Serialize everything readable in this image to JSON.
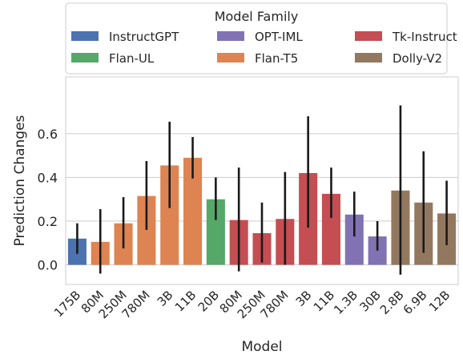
{
  "chart_data": {
    "type": "bar",
    "xlabel": "Model",
    "ylabel": "Prediction Changes",
    "ylim": [
      -0.09,
      0.86
    ],
    "yticks": [
      0.0,
      0.2,
      0.4,
      0.6
    ],
    "ytick_labels": [
      "0.0",
      "0.2",
      "0.4",
      "0.6"
    ],
    "grid": true,
    "legend": {
      "title": "Model Family",
      "placement": "top",
      "columns": 3,
      "entries": [
        {
          "name": "InstructGPT",
          "color": "#4c72b0"
        },
        {
          "name": "Flan-UL",
          "color": "#55a868"
        },
        {
          "name": "OPT-IML",
          "color": "#8172b3"
        },
        {
          "name": "Flan-T5",
          "color": "#dd8452"
        },
        {
          "name": "Tk-Instruct",
          "color": "#c44e52"
        },
        {
          "name": "Dolly-V2",
          "color": "#937860"
        }
      ]
    },
    "categories": [
      "175B",
      "80M",
      "250M",
      "780M",
      "3B",
      "11B",
      "20B",
      "80M",
      "250M",
      "780M",
      "3B",
      "11B",
      "1.3B",
      "30B",
      "2.8B",
      "6.9B",
      "12B"
    ],
    "bars": [
      {
        "label": "175B",
        "family": "InstructGPT",
        "value": 0.12,
        "err_low": 0.05,
        "err_high": 0.19
      },
      {
        "label": "80M",
        "family": "Flan-T5",
        "value": 0.105,
        "err_low": -0.04,
        "err_high": 0.255
      },
      {
        "label": "250M",
        "family": "Flan-T5",
        "value": 0.19,
        "err_low": 0.075,
        "err_high": 0.31
      },
      {
        "label": "780M",
        "family": "Flan-T5",
        "value": 0.315,
        "err_low": 0.16,
        "err_high": 0.475
      },
      {
        "label": "3B",
        "family": "Flan-T5",
        "value": 0.455,
        "err_low": 0.26,
        "err_high": 0.655
      },
      {
        "label": "11B",
        "family": "Flan-T5",
        "value": 0.49,
        "err_low": 0.395,
        "err_high": 0.585
      },
      {
        "label": "20B",
        "family": "Flan-UL",
        "value": 0.3,
        "err_low": 0.205,
        "err_high": 0.4
      },
      {
        "label": "80M",
        "family": "Tk-Instruct",
        "value": 0.205,
        "err_low": -0.03,
        "err_high": 0.445
      },
      {
        "label": "250M",
        "family": "Tk-Instruct",
        "value": 0.145,
        "err_low": 0.01,
        "err_high": 0.285
      },
      {
        "label": "780M",
        "family": "Tk-Instruct",
        "value": 0.21,
        "err_low": 0.0,
        "err_high": 0.425
      },
      {
        "label": "3B",
        "family": "Tk-Instruct",
        "value": 0.42,
        "err_low": 0.17,
        "err_high": 0.68
      },
      {
        "label": "11B",
        "family": "Tk-Instruct",
        "value": 0.325,
        "err_low": 0.215,
        "err_high": 0.445
      },
      {
        "label": "1.3B",
        "family": "OPT-IML",
        "value": 0.23,
        "err_low": 0.13,
        "err_high": 0.335
      },
      {
        "label": "30B",
        "family": "OPT-IML",
        "value": 0.13,
        "err_low": 0.065,
        "err_high": 0.2
      },
      {
        "label": "2.8B",
        "family": "Dolly-V2",
        "value": 0.34,
        "err_low": -0.045,
        "err_high": 0.73
      },
      {
        "label": "6.9B",
        "family": "Dolly-V2",
        "value": 0.285,
        "err_low": 0.055,
        "err_high": 0.52
      },
      {
        "label": "12B",
        "family": "Dolly-V2",
        "value": 0.235,
        "err_low": 0.09,
        "err_high": 0.385
      }
    ]
  }
}
